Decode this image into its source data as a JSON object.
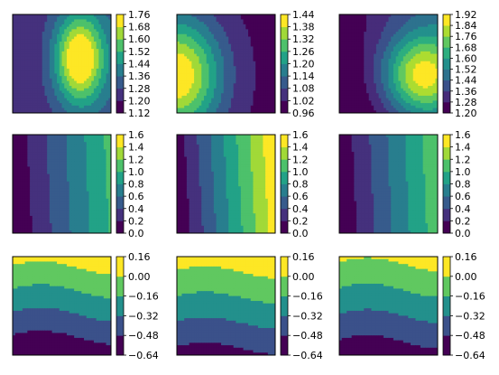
{
  "chart_data": [
    {
      "type": "heatmap",
      "kind": "filled-contour",
      "levels": [
        1.12,
        1.2,
        1.28,
        1.36,
        1.44,
        1.52,
        1.6,
        1.68,
        1.76
      ],
      "colorbar_ticks": [
        "1.12",
        "1.20",
        "1.28",
        "1.36",
        "1.44",
        "1.52",
        "1.60",
        "1.68",
        "1.76"
      ],
      "field": {
        "base": 1.2,
        "a": 0.55,
        "cx": 0.68,
        "cy": 0.45,
        "sx": 0.18,
        "sy": 0.32,
        "gx": 0.1,
        "gy": 0.0
      },
      "axis_ticks": false
    },
    {
      "type": "heatmap",
      "kind": "filled-contour",
      "levels": [
        0.96,
        1.02,
        1.08,
        1.14,
        1.2,
        1.26,
        1.32,
        1.38,
        1.44
      ],
      "colorbar_ticks": [
        "0.96",
        "1.02",
        "1.08",
        "1.14",
        "1.20",
        "1.26",
        "1.32",
        "1.38",
        "1.44"
      ],
      "field": {
        "base": 1.0,
        "a": 0.44,
        "cx": 0.0,
        "cy": 0.62,
        "sx": 0.32,
        "sy": 0.42,
        "gx": 0.0,
        "gy": 0.0
      },
      "axis_ticks": false
    },
    {
      "type": "heatmap",
      "kind": "filled-contour",
      "levels": [
        1.2,
        1.28,
        1.36,
        1.44,
        1.52,
        1.6,
        1.68,
        1.76,
        1.84,
        1.92
      ],
      "colorbar_ticks": [
        "1.20",
        "1.28",
        "1.36",
        "1.44",
        "1.52",
        "1.60",
        "1.68",
        "1.76",
        "1.84",
        "1.92"
      ],
      "field": {
        "base": 1.22,
        "a": 0.55,
        "cx": 0.84,
        "cy": 0.62,
        "sx": 0.28,
        "sy": 0.3,
        "gx": 0.2,
        "gy": -0.08
      },
      "axis_ticks": false
    },
    {
      "type": "heatmap",
      "kind": "filled-contour",
      "levels": [
        0.0,
        0.2,
        0.4,
        0.6,
        0.8,
        1.0,
        1.2,
        1.4,
        1.6
      ],
      "colorbar_ticks": [
        "0.0",
        "0.2",
        "0.4",
        "0.6",
        "0.8",
        "1.0",
        "1.2",
        "1.4",
        "1.6"
      ],
      "field": {
        "mode": "xband",
        "scale": 1.02,
        "tilt": 0.05
      },
      "axis_ticks": false
    },
    {
      "type": "heatmap",
      "kind": "filled-contour",
      "levels": [
        0.0,
        0.2,
        0.4,
        0.6,
        0.8,
        1.0,
        1.2,
        1.4,
        1.6
      ],
      "colorbar_ticks": [
        "0.0",
        "0.2",
        "0.4",
        "0.6",
        "0.8",
        "1.0",
        "1.2",
        "1.4",
        "1.6"
      ],
      "field": {
        "mode": "xband",
        "scale": 1.5,
        "tilt": 0.06
      },
      "axis_ticks": false
    },
    {
      "type": "heatmap",
      "kind": "filled-contour",
      "levels": [
        0.0,
        0.2,
        0.4,
        0.6,
        0.8,
        1.0,
        1.2,
        1.4,
        1.6
      ],
      "colorbar_ticks": [
        "0.0",
        "0.2",
        "0.4",
        "0.6",
        "0.8",
        "1.0",
        "1.2",
        "1.4",
        "1.6"
      ],
      "field": {
        "mode": "xband",
        "scale": 1.12,
        "tilt": 0.05
      },
      "axis_ticks": false
    },
    {
      "type": "heatmap",
      "kind": "filled-contour",
      "levels": [
        -0.64,
        -0.48,
        -0.32,
        -0.16,
        0.0,
        0.16
      ],
      "colorbar_ticks": [
        "−0.64",
        "−0.48",
        "−0.32",
        "−0.16",
        "0.00",
        "0.16"
      ],
      "field": {
        "mode": "ywave",
        "ly": 0.08,
        "hy": -0.6,
        "wave": 0.07
      },
      "axis_ticks": false
    },
    {
      "type": "heatmap",
      "kind": "filled-contour",
      "levels": [
        -0.64,
        -0.48,
        -0.32,
        -0.16,
        0.0,
        0.16
      ],
      "colorbar_ticks": [
        "−0.64",
        "−0.48",
        "−0.32",
        "−0.16",
        "0.00",
        "0.16"
      ],
      "field": {
        "mode": "ywave",
        "ly": 0.1,
        "hy": -0.52,
        "wave": 0.06
      },
      "axis_ticks": false
    },
    {
      "type": "heatmap",
      "kind": "filled-contour",
      "levels": [
        -0.64,
        -0.48,
        -0.32,
        -0.16,
        0.0,
        0.16
      ],
      "colorbar_ticks": [
        "−0.64",
        "−0.48",
        "−0.32",
        "−0.16",
        "0.00",
        "0.16"
      ],
      "field": {
        "mode": "ywave",
        "ly": 0.05,
        "hy": -0.56,
        "wave": 0.07
      },
      "axis_ticks": false
    }
  ],
  "colormap": [
    "#440154",
    "#482878",
    "#3e4989",
    "#31688e",
    "#26828e",
    "#1f9e89",
    "#35b779",
    "#6ece58",
    "#b5de2b",
    "#fde725"
  ]
}
